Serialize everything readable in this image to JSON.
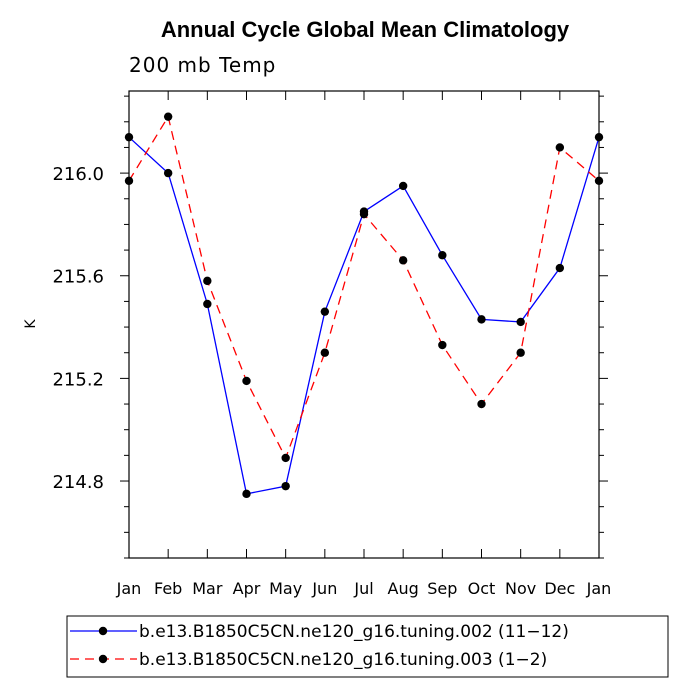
{
  "chart_data": {
    "type": "line",
    "title": "Annual Cycle Global Mean Climatology",
    "subtitle": "200 mb Temp",
    "xlabel": "",
    "ylabel": "K",
    "categories": [
      "Jan",
      "Feb",
      "Mar",
      "Apr",
      "May",
      "Jun",
      "Jul",
      "Aug",
      "Sep",
      "Oct",
      "Nov",
      "Dec",
      "Jan"
    ],
    "yticks": [
      "214.8",
      "215.2",
      "215.6",
      "216.0"
    ],
    "ylim": [
      214.5,
      216.32
    ],
    "series": [
      {
        "name": "b.e13.B1850C5CN.ne120_g16.tuning.002 (11-12)",
        "color": "#0000ff",
        "dash": "solid",
        "values": [
          216.14,
          216.0,
          215.49,
          214.75,
          214.78,
          215.46,
          215.85,
          215.95,
          215.68,
          215.43,
          215.42,
          215.63,
          216.14
        ]
      },
      {
        "name": "b.e13.B1850C5CN.ne120_g16.tuning.003 (1-2)",
        "color": "#ff0000",
        "dash": "dashed",
        "values": [
          215.97,
          216.22,
          215.58,
          215.19,
          214.89,
          215.3,
          215.84,
          215.66,
          215.33,
          215.1,
          215.3,
          216.1,
          215.97
        ]
      }
    ],
    "legend": {
      "position": "bottom",
      "entries": [
        "b.e13.B1850C5CN.ne120_g16.tuning.002 (11−12)",
        "b.e13.B1850C5CN.ne120_g16.tuning.003 (1−2)"
      ]
    }
  }
}
